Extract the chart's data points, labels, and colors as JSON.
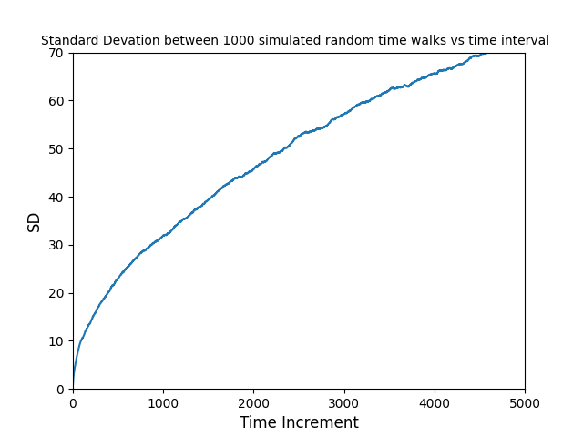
{
  "title": "Standard Devation between 1000 simulated random time walks vs time interval",
  "xlabel": "Time Increment",
  "ylabel": "SD",
  "xlim": [
    0,
    5000
  ],
  "ylim": [
    0,
    70
  ],
  "xticks": [
    0,
    1000,
    2000,
    3000,
    4000,
    5000
  ],
  "yticks": [
    0,
    10,
    20,
    30,
    40,
    50,
    60,
    70
  ],
  "n_steps": 5000,
  "n_walks": 1000,
  "random_seed": 0,
  "line_color": "#1f77b4",
  "line_width": 1.5,
  "background_color": "#ffffff",
  "title_fontsize": 10
}
